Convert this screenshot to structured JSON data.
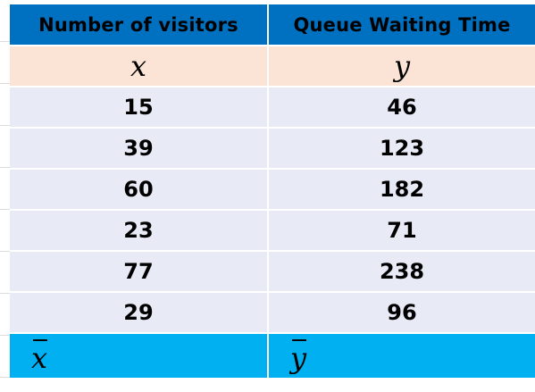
{
  "table": {
    "headers": [
      "Number of visitors",
      "Queue Waiting Time"
    ],
    "symbols": [
      "x",
      "y"
    ],
    "rows": [
      [
        "15",
        "46"
      ],
      [
        "39",
        "123"
      ],
      [
        "60",
        "182"
      ],
      [
        "23",
        "71"
      ],
      [
        "77",
        "238"
      ],
      [
        "29",
        "96"
      ]
    ],
    "means": [
      "x",
      "y"
    ]
  },
  "colors": {
    "header_bg": "#0070c0",
    "symbol_row_bg": "#fbe4d5",
    "data_row_bg": "#e8eaf6",
    "mean_row_bg": "#00b0f0"
  }
}
